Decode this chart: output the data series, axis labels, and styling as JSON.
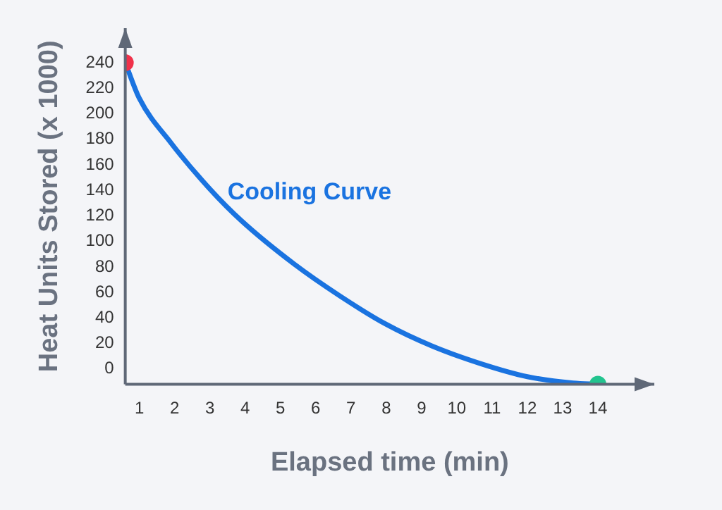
{
  "chart_data": {
    "type": "line",
    "xlabel": "Elapsed time (min)",
    "ylabel": "Heat Units Stored (x 1000)",
    "xlim": [
      0.6,
      15.6
    ],
    "ylim": [
      -12,
      267
    ],
    "xticks": [
      1,
      2,
      3,
      4,
      5,
      6,
      7,
      8,
      9,
      10,
      11,
      12,
      13,
      14
    ],
    "yticks": [
      0,
      20,
      40,
      60,
      80,
      100,
      120,
      140,
      160,
      180,
      200,
      220,
      240
    ],
    "grid": false,
    "legend": false,
    "marker": "none",
    "line_style": "solid",
    "series": [
      {
        "name": "Cooling Curve",
        "color": "#1a73e0",
        "x": [
          0.6,
          1,
          1.9,
          3,
          3.9,
          5.4,
          6.7,
          8,
          9.3,
          10.7,
          12,
          13.3,
          14
        ],
        "values": [
          240,
          212,
          177,
          141,
          116,
          82,
          57,
          35,
          18,
          4,
          -6,
          -11,
          -12
        ]
      },
      {
        "type": "scatter",
        "marker": "circle",
        "color": "#f0314a",
        "x": [
          0.6
        ],
        "values": [
          240
        ]
      },
      {
        "type": "scatter",
        "marker": "circle",
        "color": "#22c48f",
        "x": [
          14
        ],
        "values": [
          -12
        ]
      }
    ]
  }
}
